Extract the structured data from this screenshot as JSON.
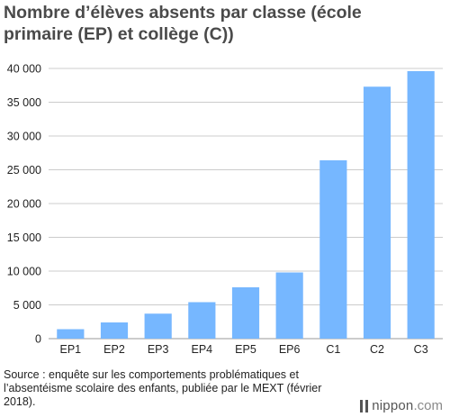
{
  "chart_data": {
    "type": "bar",
    "title": "Nombre d’élèves absents par classe (école primaire (EP) et collège (C))",
    "categories": [
      "EP1",
      "EP2",
      "EP3",
      "EP4",
      "EP5",
      "EP6",
      "C1",
      "C2",
      "C3"
    ],
    "values": [
      1400,
      2400,
      3700,
      5400,
      7600,
      9800,
      26400,
      37300,
      39600
    ],
    "ylim": [
      0,
      40000
    ],
    "yticks": [
      0,
      5000,
      10000,
      15000,
      20000,
      25000,
      30000,
      35000,
      40000
    ],
    "ytick_labels": [
      "0",
      "5 000",
      "10 000",
      "15 000",
      "20 000",
      "25 000",
      "30 000",
      "35 000",
      "40 000"
    ],
    "xlabel": "",
    "ylabel": "",
    "grid": "horizontal",
    "bar_color": "#76b7ff",
    "grid_color": "#cccccc"
  },
  "source": "Source : enquête sur les comportements problématiques et l’absentéisme scolaire des enfants, publiée par le MEXT (février 2018).",
  "brand": {
    "name": "nippon",
    "tld": ".com",
    "icon": "nippon-logo-icon"
  }
}
